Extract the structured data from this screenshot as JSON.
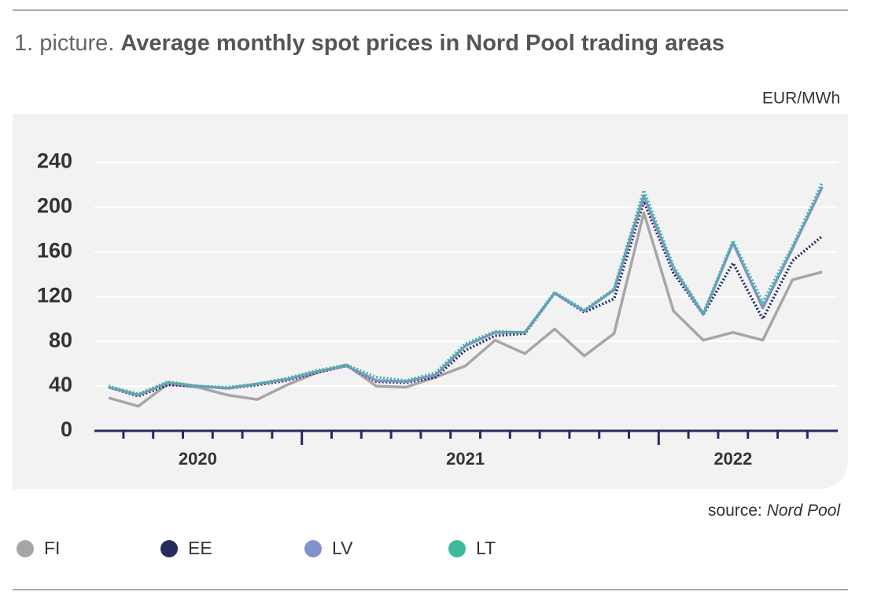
{
  "chart_data": {
    "type": "line",
    "title_prefix": "1. picture.",
    "title": "Average monthly spot prices in Nord Pool trading areas",
    "y_unit": "EUR/MWh",
    "source_label": "source:",
    "source": "Nord Pool",
    "categories": [
      null,
      null,
      null,
      "2020",
      null,
      null,
      null,
      null,
      null,
      null,
      null,
      null,
      "2021",
      null,
      null,
      null,
      null,
      null,
      null,
      null,
      null,
      "2022",
      null,
      null,
      null
    ],
    "ylim": [
      0,
      260
    ],
    "yticks": [
      0,
      40,
      80,
      120,
      160,
      200,
      240
    ],
    "grid": true,
    "series": [
      {
        "name": "FI",
        "color": "#a6a6a6",
        "style": "solid",
        "values": [
          29.5,
          22,
          42,
          39,
          32,
          28,
          41,
          52,
          59,
          40,
          39,
          48,
          58,
          81,
          69,
          91,
          67,
          87,
          195,
          107,
          81,
          88,
          81,
          135,
          142
        ]
      },
      {
        "name": "EE",
        "color": "#262b5e",
        "style": "dotted",
        "values": [
          39,
          31,
          41,
          40,
          38,
          41,
          45,
          52,
          58,
          44,
          43,
          48,
          72,
          85,
          87,
          123,
          106,
          118,
          205,
          141,
          104,
          150,
          100,
          152,
          174
        ]
      },
      {
        "name": "LV",
        "color": "#7f93c8",
        "style": "solid",
        "values": [
          39,
          32,
          43,
          40,
          38,
          42,
          46,
          53,
          58,
          45,
          44,
          50,
          76,
          88,
          88,
          123,
          107,
          126,
          210,
          145,
          104,
          168,
          110,
          163,
          218
        ]
      },
      {
        "name": "LT",
        "color": "#3bbb99",
        "style": "dotted",
        "values": [
          40,
          33,
          44,
          40,
          39,
          42,
          47,
          54,
          59,
          48,
          45,
          52,
          78,
          89,
          88,
          124,
          108,
          127,
          215,
          147,
          105,
          170,
          115,
          165,
          222
        ]
      }
    ]
  }
}
